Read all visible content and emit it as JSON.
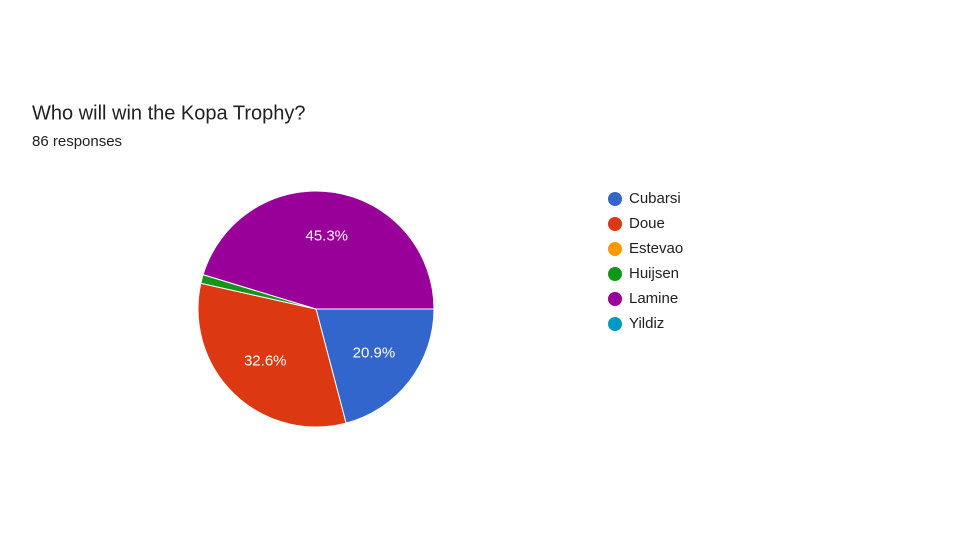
{
  "chart_data": {
    "type": "pie",
    "title": "Who will win the Kopa Trophy?",
    "subtitle": "86 responses",
    "categories": [
      "Cubarsi",
      "Doue",
      "Estevao",
      "Huijsen",
      "Lamine",
      "Yildiz"
    ],
    "values": [
      20.9,
      32.6,
      0,
      1.2,
      45.3,
      0
    ],
    "value_labels": [
      "20.9%",
      "32.6%",
      null,
      null,
      "45.3%",
      null
    ],
    "colors": [
      "#3366cc",
      "#dc3912",
      "#ff9900",
      "#109618",
      "#990099",
      "#0099c6"
    ],
    "legend": "right"
  }
}
